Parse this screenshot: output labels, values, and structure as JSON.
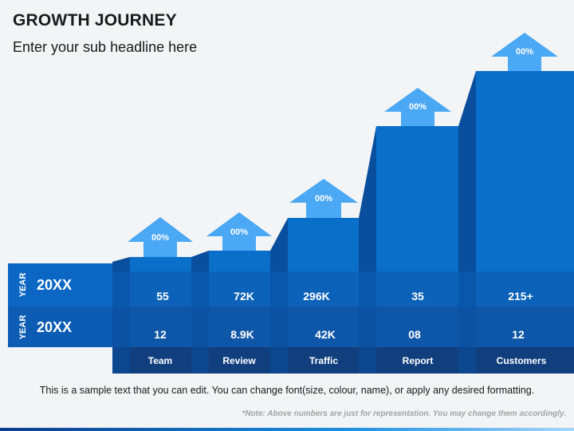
{
  "title": "GROWTH JOURNEY",
  "subtitle": "Enter your sub headline here",
  "rows": [
    {
      "label": "YEAR",
      "year": "20XX"
    },
    {
      "label": "YEAR",
      "year": "20XX"
    }
  ],
  "steps": [
    {
      "name": "Team",
      "percent": "00%",
      "row1": "55",
      "row2": "12"
    },
    {
      "name": "Review",
      "percent": "00%",
      "row1": "72K",
      "row2": "8.9K"
    },
    {
      "name": "Traffic",
      "percent": "00%",
      "row1": "296K",
      "row2": "42K"
    },
    {
      "name": "Report",
      "percent": "00%",
      "row1": "35",
      "row2": "08"
    },
    {
      "name": "Customers",
      "percent": "00%",
      "row1": "215+",
      "row2": "12"
    }
  ],
  "body_text": "This is a sample text that you can edit. You can change font(size, colour, name), or apply any desired formatting.",
  "note": "*Note: Above numbers are just for representation. You may change them accordingly.",
  "colors": {
    "step_top": "#0a6fc9",
    "connector": "#0a4f9e",
    "row1": "#0b62b8",
    "row2": "#0f5aae",
    "label_row": "#113f7e",
    "left_panel": "#0c67c4",
    "arrow": "#4aa8f5",
    "background": "#f3f4f6"
  }
}
